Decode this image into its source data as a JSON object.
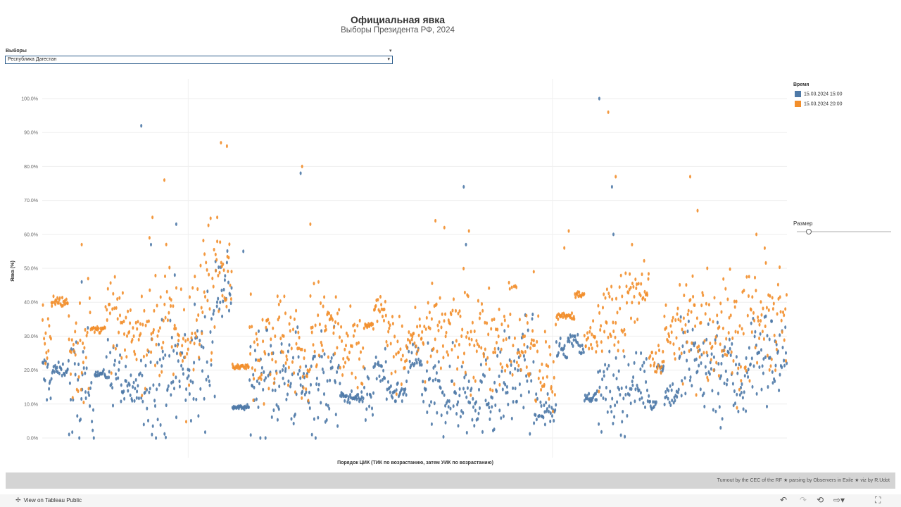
{
  "chart_title": "Официальная явка",
  "chart_subtitle": "Выборы Президента РФ, 2024",
  "filter": {
    "label": "Выборы",
    "selected": "Республика Дагестан"
  },
  "legend": {
    "title": "Время",
    "items": [
      {
        "label": "15.03.2024 15:00",
        "color": "#4e79a7"
      },
      {
        "label": "15.03.2024 20:00",
        "color": "#f28e2b"
      }
    ]
  },
  "size_control": {
    "title": "Размер",
    "value": 0.1
  },
  "footer": {
    "credit": "Turnout by the CEC of the RF ★ parsing by Observers in Exile ★ viz by R.Udot"
  },
  "toolbar": {
    "view_link": "View on Tableau Public",
    "icons": [
      "undo-icon",
      "redo-icon",
      "revert-icon",
      "share-icon",
      "fullscreen-icon"
    ]
  },
  "chart_data": {
    "type": "scatter",
    "xlabel": "Порядок ЦИК (ТИК по возрастанию, затем УИК по возрастанию)",
    "ylabel": "Явка (%)",
    "ylim": [
      0,
      100
    ],
    "ytick_step": 10,
    "y_ticks": [
      "0.0%",
      "10.0%",
      "20.0%",
      "30.0%",
      "40.0%",
      "50.0%",
      "60.0%",
      "70.0%",
      "80.0%",
      "90.0%",
      "100.0%"
    ],
    "x_range": [
      0,
      1000
    ],
    "x_dividers": [
      196,
      685
    ],
    "grid": "horizontal",
    "legend_position": "right",
    "series": [
      {
        "name": "15.03.2024 15:00",
        "color": "#4e79a7",
        "segments": [
          [
            0,
            14,
            18,
            4
          ],
          [
            14,
            35,
            20,
            1
          ],
          [
            35,
            70,
            14,
            8
          ],
          [
            70,
            85,
            19,
            0.5
          ],
          [
            85,
            105,
            20,
            5
          ],
          [
            105,
            132,
            14,
            3
          ],
          [
            132,
            175,
            18,
            8
          ],
          [
            175,
            215,
            20,
            9
          ],
          [
            215,
            232,
            29,
            12
          ],
          [
            232,
            255,
            45,
            6
          ],
          [
            255,
            278,
            9,
            0.3
          ],
          [
            278,
            345,
            18,
            8
          ],
          [
            345,
            360,
            15,
            4
          ],
          [
            360,
            400,
            17,
            8
          ],
          [
            400,
            432,
            12,
            0.8
          ],
          [
            432,
            445,
            12,
            4
          ],
          [
            445,
            462,
            20,
            3
          ],
          [
            462,
            490,
            13,
            1.5
          ],
          [
            490,
            510,
            23,
            3
          ],
          [
            510,
            610,
            13,
            6
          ],
          [
            610,
            638,
            16,
            7
          ],
          [
            638,
            660,
            20,
            8
          ],
          [
            660,
            690,
            8,
            2
          ],
          [
            690,
            705,
            26,
            1.5
          ],
          [
            705,
            720,
            29,
            1
          ],
          [
            720,
            728,
            26,
            1
          ],
          [
            728,
            745,
            12,
            0.6
          ],
          [
            745,
            785,
            13,
            6
          ],
          [
            785,
            815,
            16,
            4
          ],
          [
            815,
            825,
            10,
            1
          ],
          [
            825,
            835,
            21,
            0.8
          ],
          [
            835,
            855,
            13,
            2
          ],
          [
            855,
            925,
            22,
            8
          ],
          [
            925,
            945,
            16,
            6
          ],
          [
            945,
            1000,
            24,
            7
          ]
        ],
        "outliers": [
          [
            53,
            46
          ],
          [
            133,
            92
          ],
          [
            146,
            57
          ],
          [
            178,
            48
          ],
          [
            180,
            63
          ],
          [
            270,
            55
          ],
          [
            347,
            78
          ],
          [
            569,
            57
          ],
          [
            566,
            74
          ],
          [
            748,
            100
          ],
          [
            765,
            74
          ],
          [
            767,
            60
          ],
          [
            804,
            25
          ],
          [
            911,
            3
          ]
        ]
      },
      {
        "name": "15.03.2024 20:00",
        "color": "#f28e2b",
        "segments": [
          [
            0,
            12,
            30,
            4
          ],
          [
            12,
            35,
            40,
            1
          ],
          [
            35,
            65,
            28,
            9
          ],
          [
            65,
            85,
            32,
            0.5
          ],
          [
            85,
            105,
            35,
            6
          ],
          [
            105,
            132,
            31,
            4
          ],
          [
            132,
            175,
            34,
            9
          ],
          [
            175,
            215,
            30,
            10
          ],
          [
            215,
            232,
            45,
            12
          ],
          [
            232,
            255,
            52,
            6
          ],
          [
            255,
            278,
            21,
            0.3
          ],
          [
            278,
            345,
            29,
            8
          ],
          [
            345,
            360,
            20,
            5
          ],
          [
            360,
            400,
            32,
            7
          ],
          [
            400,
            432,
            24,
            6
          ],
          [
            432,
            445,
            33,
            0.7
          ],
          [
            445,
            462,
            38,
            2
          ],
          [
            462,
            490,
            26,
            5
          ],
          [
            490,
            510,
            30,
            3
          ],
          [
            510,
            610,
            30,
            7
          ],
          [
            610,
            638,
            32,
            8
          ],
          [
            638,
            660,
            26,
            6
          ],
          [
            660,
            690,
            20,
            8
          ],
          [
            690,
            715,
            36,
            0.6
          ],
          [
            715,
            728,
            42,
            0.6
          ],
          [
            728,
            745,
            30,
            2
          ],
          [
            745,
            785,
            34,
            8
          ],
          [
            785,
            815,
            43,
            4
          ],
          [
            815,
            835,
            24,
            3
          ],
          [
            835,
            855,
            31,
            4
          ],
          [
            855,
            925,
            33,
            9
          ],
          [
            925,
            945,
            30,
            8
          ],
          [
            945,
            1000,
            34,
            8
          ]
        ],
        "outliers": [
          [
            53,
            57
          ],
          [
            148,
            65
          ],
          [
            164,
            76
          ],
          [
            235,
            65
          ],
          [
            240,
            87
          ],
          [
            248,
            86
          ],
          [
            349,
            80
          ],
          [
            360,
            63
          ],
          [
            528,
            64
          ],
          [
            540,
            62
          ],
          [
            573,
            61
          ],
          [
            660,
            49
          ],
          [
            701,
            56
          ],
          [
            707,
            61
          ],
          [
            760,
            96
          ],
          [
            770,
            77
          ],
          [
            792,
            57
          ],
          [
            870,
            77
          ],
          [
            880,
            67
          ],
          [
            893,
            50
          ],
          [
            959,
            60
          ]
        ]
      }
    ]
  }
}
